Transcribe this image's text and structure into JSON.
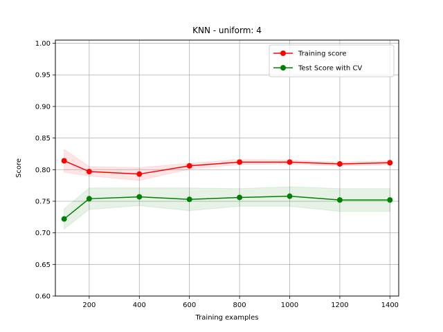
{
  "chart_data": {
    "type": "line",
    "title": "KNN - uniform: 4",
    "xlabel": "Training examples",
    "ylabel": "Score",
    "xlim": [
      65,
      1435
    ],
    "ylim": [
      0.6,
      1.005
    ],
    "xticks": [
      200,
      400,
      600,
      800,
      1000,
      1200,
      1400
    ],
    "yticks": [
      0.6,
      0.65,
      0.7,
      0.75,
      0.8,
      0.85,
      0.9,
      0.95,
      1.0
    ],
    "xtick_labels": [
      "200",
      "400",
      "600",
      "800",
      "1000",
      "1200",
      "1400"
    ],
    "ytick_labels": [
      "0.60",
      "0.65",
      "0.70",
      "0.75",
      "0.80",
      "0.85",
      "0.90",
      "0.95",
      "1.00"
    ],
    "grid": true,
    "legend_position": "top-right",
    "x": [
      100,
      200,
      400,
      600,
      800,
      1000,
      1200,
      1400
    ],
    "series": [
      {
        "name": "Training score",
        "color": "#ff0000",
        "values": [
          0.814,
          0.797,
          0.793,
          0.806,
          0.812,
          0.812,
          0.809,
          0.811
        ],
        "band_lower": [
          0.796,
          0.79,
          0.783,
          0.801,
          0.808,
          0.809,
          0.806,
          0.808
        ],
        "band_upper": [
          0.832,
          0.805,
          0.803,
          0.81,
          0.816,
          0.815,
          0.812,
          0.814
        ]
      },
      {
        "name": "Test Score with CV",
        "color": "#008000",
        "values": [
          0.722,
          0.754,
          0.757,
          0.753,
          0.756,
          0.758,
          0.752,
          0.752
        ],
        "band_lower": [
          0.706,
          0.737,
          0.743,
          0.735,
          0.742,
          0.742,
          0.734,
          0.734
        ],
        "band_upper": [
          0.738,
          0.771,
          0.771,
          0.771,
          0.77,
          0.773,
          0.77,
          0.77
        ]
      }
    ]
  }
}
